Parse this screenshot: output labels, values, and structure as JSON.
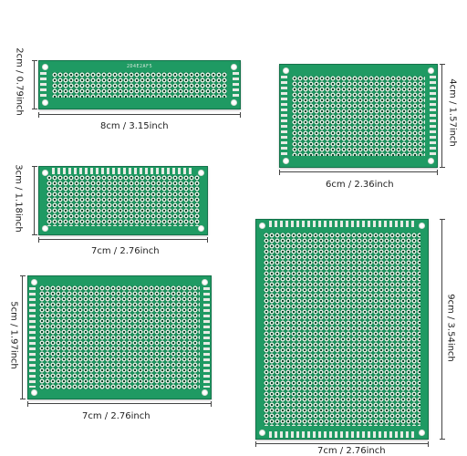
{
  "boards": [
    {
      "id": "8x2",
      "width_label": "8cm / 3.15inch",
      "height_label": "2cm / 0.79inch",
      "silkscreen": "2D4E2AF5"
    },
    {
      "id": "6x4",
      "width_label": "6cm / 2.36inch",
      "height_label": "4cm / 1.57inch"
    },
    {
      "id": "7x3",
      "width_label": "7cm / 2.76inch",
      "height_label": "3cm / 1.18inch"
    },
    {
      "id": "7x5",
      "width_label": "7cm / 2.76inch",
      "height_label": "5cm / 1.97inch"
    },
    {
      "id": "9x7",
      "width_label": "7cm / 2.76inch",
      "height_label": "9cm / 3.54inch"
    }
  ],
  "colors": {
    "board": "#1f9a63",
    "pad": "#e6ebe4",
    "background": "#ffffff"
  }
}
